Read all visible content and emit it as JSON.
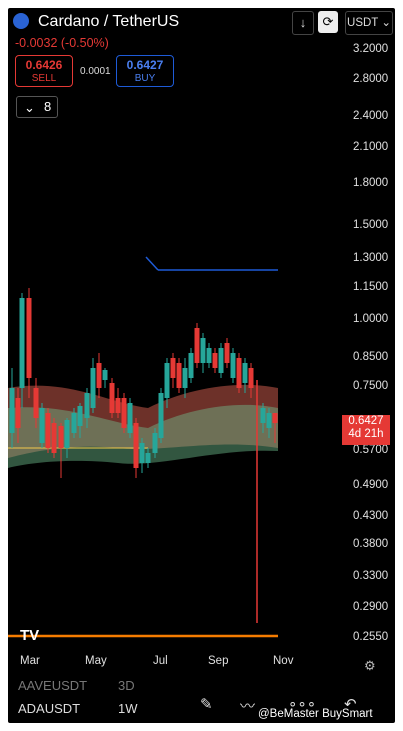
{
  "header": {
    "title": "Cardano / TetherUS",
    "change": "-0.0032 (-0.50%)"
  },
  "trade": {
    "sell_price": "0.6426",
    "sell_label": "SELL",
    "spread": "0.0001",
    "buy_price": "0.6427",
    "buy_label": "BUY"
  },
  "indicator": {
    "count": "8"
  },
  "toolbar": {
    "quote": "USDT"
  },
  "axis": {
    "ticks": [
      "3.2000",
      "2.8000",
      "2.4000",
      "2.1000",
      "1.8000",
      "1.5000",
      "1.3000",
      "1.1500",
      "1.0000",
      "0.8500",
      "0.7500",
      "0.5700",
      "0.4900",
      "0.4300",
      "0.3800",
      "0.3300",
      "0.2900",
      "0.2550"
    ]
  },
  "price_label": {
    "price": "0.6427",
    "countdown": "4d 21h"
  },
  "xaxis": {
    "labels": [
      "Mar",
      "May",
      "Jul",
      "Sep",
      "Nov"
    ]
  },
  "symbols": [
    {
      "name": "AAVEUSDT",
      "interval": "3D"
    },
    {
      "name": "ADAUSDT",
      "interval": "1W"
    }
  ],
  "watermark": "@BeMaster BuySmart",
  "colors": {
    "up": "#26a69a",
    "down": "#e53935",
    "blue": "#1e5bd7",
    "orange": "#f57c00"
  }
}
